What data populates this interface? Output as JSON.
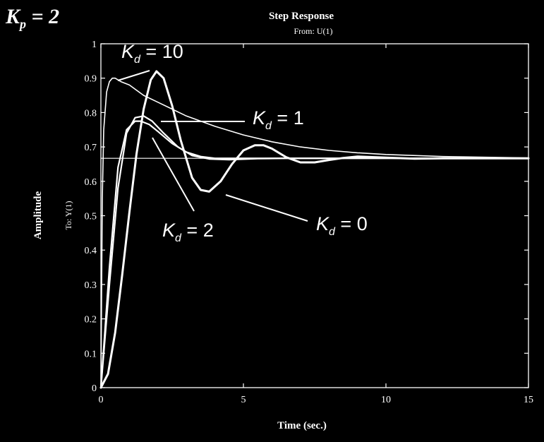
{
  "page": {
    "corner_label": {
      "symbol": "K",
      "sub": "p",
      "rest": " = 2"
    },
    "colors": {
      "background": "#000000",
      "ink": "#ffffff"
    }
  },
  "chart_data": {
    "type": "line",
    "title": "Step Response",
    "subtitle": "From: U(1)",
    "xlabel": "Time (sec.)",
    "ylabel": "Amplitude",
    "ylabel2": "To: Y(1)",
    "xlim": [
      0,
      15
    ],
    "ylim": [
      0,
      1
    ],
    "x_ticks": [
      0,
      5,
      10,
      15
    ],
    "y_ticks": [
      0,
      0.1,
      0.2,
      0.3,
      0.4,
      0.5,
      0.6,
      0.7,
      0.8,
      0.9,
      1
    ],
    "grid": false,
    "reference_line": {
      "y": 0.667
    },
    "series": [
      {
        "name": "Kd = 10",
        "label": {
          "symbol": "K",
          "sub": "d",
          "rest": " = 10"
        },
        "x": [
          0,
          0.05,
          0.1,
          0.2,
          0.3,
          0.4,
          0.5,
          0.7,
          1.0,
          1.5,
          2.0,
          2.5,
          3.0,
          4.0,
          5.0,
          6.0,
          7.0,
          8.0,
          9.0,
          10.0,
          12.0,
          15.0
        ],
        "y": [
          0,
          0.55,
          0.75,
          0.86,
          0.89,
          0.9,
          0.9,
          0.89,
          0.88,
          0.85,
          0.83,
          0.81,
          0.79,
          0.76,
          0.735,
          0.715,
          0.7,
          0.69,
          0.683,
          0.678,
          0.672,
          0.668
        ]
      },
      {
        "name": "Kd = 1",
        "label": {
          "symbol": "K",
          "sub": "d",
          "rest": " = 1"
        },
        "x": [
          0,
          0.3,
          0.6,
          0.9,
          1.2,
          1.5,
          1.8,
          2.2,
          2.7,
          3.2,
          3.8,
          4.5,
          5.5,
          6.5,
          8.0,
          10.0,
          15.0
        ],
        "y": [
          0,
          0.3,
          0.58,
          0.74,
          0.785,
          0.79,
          0.775,
          0.74,
          0.7,
          0.675,
          0.665,
          0.663,
          0.666,
          0.667,
          0.667,
          0.667,
          0.667
        ]
      },
      {
        "name": "Kd = 2",
        "label": {
          "symbol": "K",
          "sub": "d",
          "rest": " = 2"
        },
        "x": [
          0,
          0.3,
          0.6,
          0.9,
          1.2,
          1.4,
          1.7,
          2.0,
          2.5,
          3.0,
          3.5,
          4.0,
          5.0,
          6.0,
          8.0,
          10.0,
          15.0
        ],
        "y": [
          0,
          0.35,
          0.64,
          0.75,
          0.775,
          0.775,
          0.765,
          0.745,
          0.71,
          0.685,
          0.672,
          0.667,
          0.667,
          0.667,
          0.667,
          0.667,
          0.667
        ]
      },
      {
        "name": "Kd = 0",
        "label": {
          "symbol": "K",
          "sub": "d",
          "rest": " = 0"
        },
        "x": [
          0,
          0.25,
          0.5,
          0.75,
          1.0,
          1.25,
          1.5,
          1.75,
          1.95,
          2.2,
          2.5,
          2.8,
          3.2,
          3.5,
          3.8,
          4.2,
          4.6,
          5.0,
          5.4,
          5.7,
          6.0,
          6.5,
          7.0,
          7.5,
          8.0,
          8.5,
          9.0,
          10.0,
          11.0,
          12.0,
          13.0,
          14.0,
          15.0
        ],
        "y": [
          0,
          0.04,
          0.16,
          0.33,
          0.51,
          0.68,
          0.81,
          0.895,
          0.92,
          0.9,
          0.82,
          0.72,
          0.61,
          0.575,
          0.57,
          0.6,
          0.65,
          0.69,
          0.705,
          0.705,
          0.695,
          0.67,
          0.655,
          0.655,
          0.662,
          0.668,
          0.672,
          0.669,
          0.666,
          0.667,
          0.667,
          0.667,
          0.667
        ]
      }
    ]
  }
}
